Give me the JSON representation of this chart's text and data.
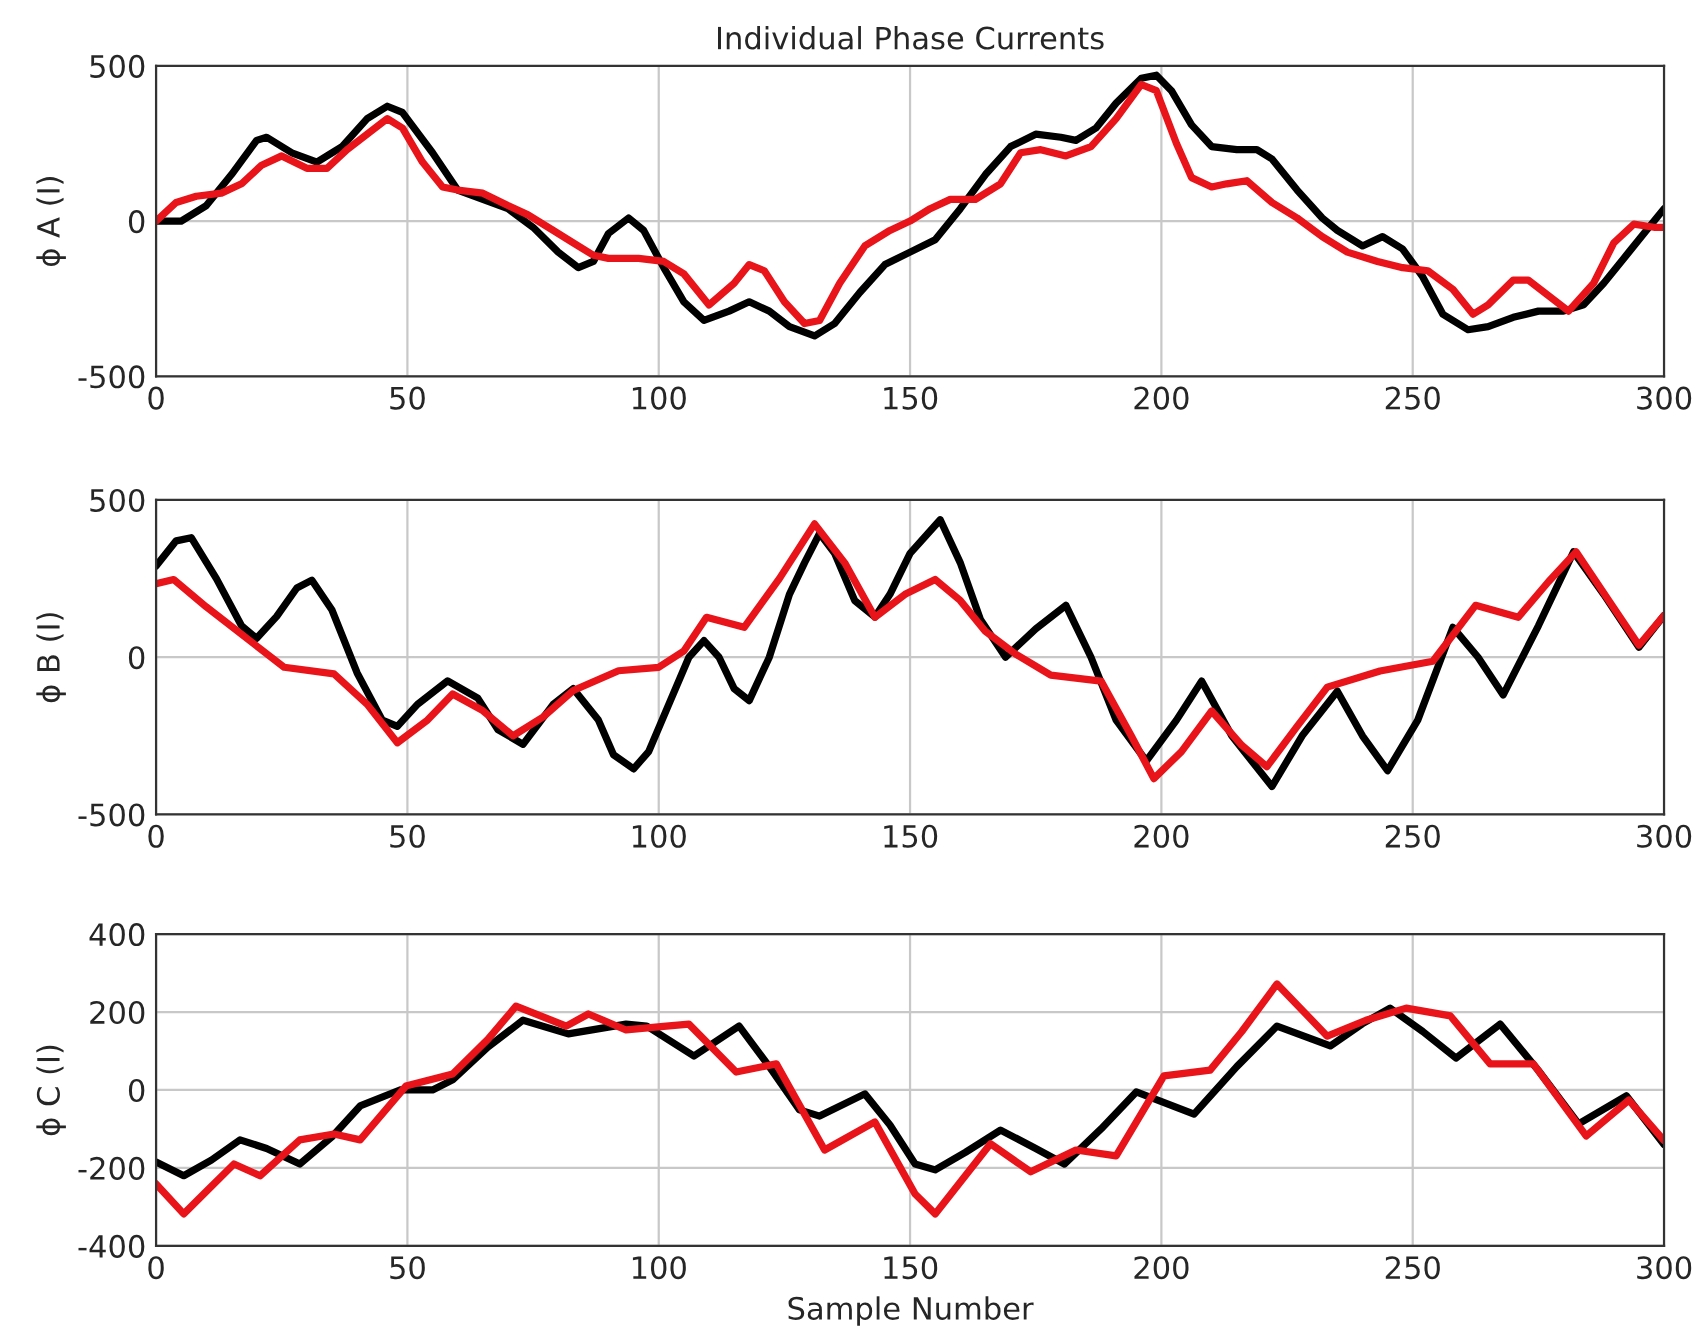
{
  "chart_data": [
    {
      "type": "line",
      "title": "Individual Phase Currents",
      "ylabel": "ϕ A (I)",
      "xlim": [
        0,
        300
      ],
      "xticks": [
        0,
        50,
        100,
        150,
        200,
        250,
        300
      ],
      "ylim": [
        -500,
        500
      ],
      "yticks": [
        -500,
        0,
        500
      ],
      "grid": true,
      "series": [
        {
          "color": "#000000",
          "x": [
            0,
            5,
            10,
            15,
            20,
            22,
            27,
            32,
            37,
            42,
            46,
            49,
            55,
            60,
            65,
            70,
            75,
            80,
            84,
            87,
            90,
            94,
            97,
            101,
            105,
            109,
            114,
            118,
            122,
            126,
            131,
            135,
            140,
            145,
            150,
            155,
            160,
            165,
            170,
            175,
            180,
            183,
            187,
            191,
            196,
            199,
            202,
            206,
            210,
            215,
            219,
            222,
            227,
            232,
            235,
            240,
            244,
            248,
            252,
            256,
            261,
            265,
            270,
            275,
            280,
            284,
            288,
            293,
            297,
            300
          ],
          "values": [
            0,
            0,
            50,
            150,
            260,
            270,
            220,
            190,
            240,
            330,
            370,
            350,
            220,
            100,
            70,
            40,
            -20,
            -100,
            -150,
            -130,
            -40,
            10,
            -30,
            -150,
            -260,
            -320,
            -290,
            -260,
            -290,
            -340,
            -370,
            -330,
            -230,
            -140,
            -100,
            -60,
            40,
            150,
            240,
            280,
            270,
            260,
            300,
            380,
            460,
            470,
            420,
            310,
            240,
            230,
            230,
            200,
            100,
            10,
            -30,
            -80,
            -50,
            -90,
            -180,
            -300,
            -350,
            -340,
            -310,
            -290,
            -290,
            -270,
            -200,
            -100,
            -20,
            40
          ]
        },
        {
          "color": "#e8141a",
          "x": [
            0,
            4,
            8,
            13,
            17,
            21,
            25,
            30,
            34,
            38,
            42,
            46,
            49,
            53,
            57,
            60,
            65,
            70,
            74,
            79,
            83,
            87,
            90,
            96,
            101,
            105,
            110,
            115,
            118,
            121,
            125,
            129,
            132,
            136,
            141,
            146,
            150,
            154,
            158,
            163,
            168,
            172,
            176,
            181,
            186,
            191,
            196,
            199,
            203,
            206,
            210,
            213,
            217,
            222,
            227,
            232,
            237,
            243,
            248,
            253,
            258,
            262,
            265,
            270,
            273,
            277,
            281,
            286,
            290,
            294,
            298,
            300
          ],
          "values": [
            0,
            60,
            80,
            90,
            120,
            180,
            210,
            170,
            170,
            230,
            280,
            330,
            300,
            190,
            110,
            100,
            90,
            50,
            20,
            -30,
            -70,
            -110,
            -120,
            -120,
            -130,
            -170,
            -270,
            -200,
            -140,
            -160,
            -260,
            -330,
            -320,
            -200,
            -80,
            -30,
            0,
            40,
            70,
            70,
            120,
            220,
            230,
            210,
            240,
            330,
            440,
            420,
            250,
            140,
            110,
            120,
            130,
            60,
            10,
            -50,
            -100,
            -130,
            -150,
            -160,
            -220,
            -300,
            -270,
            -190,
            -190,
            -240,
            -290,
            -200,
            -70,
            -10,
            -20,
            -20
          ]
        }
      ]
    },
    {
      "type": "line",
      "ylabel": "ϕ B (I)",
      "xlim": [
        0,
        300
      ],
      "xticks": [
        0,
        50,
        100,
        150,
        200,
        250,
        300
      ],
      "ylim": [
        -500,
        500
      ],
      "yticks": [
        -500,
        0,
        500
      ],
      "grid": true,
      "series": [
        {
          "color": "#000000",
          "x": [
            0,
            4,
            7,
            12,
            17,
            20,
            24,
            28,
            31,
            35,
            40,
            45,
            48,
            52,
            58,
            64,
            68,
            73,
            79,
            83,
            88,
            91,
            95,
            98,
            102,
            106,
            109,
            112,
            115,
            118,
            122,
            126,
            129,
            132,
            135,
            139,
            143,
            146,
            150,
            156,
            160,
            164,
            169,
            175,
            181,
            186,
            191,
            197,
            203,
            208,
            214,
            222,
            228,
            235,
            240,
            245,
            251,
            258,
            263,
            268,
            275,
            282,
            288,
            295,
            300
          ],
          "values": [
            290,
            370,
            380,
            250,
            100,
            60,
            130,
            220,
            245,
            150,
            -50,
            -200,
            -220,
            -150,
            -75,
            -130,
            -230,
            -277,
            -150,
            -100,
            -200,
            -310,
            -355,
            -300,
            -150,
            0,
            53,
            0,
            -100,
            -138,
            0,
            200,
            300,
            394,
            330,
            180,
            128,
            200,
            330,
            437,
            300,
            120,
            0,
            90,
            165,
            0,
            -200,
            -330,
            -200,
            -76,
            -250,
            -411,
            -250,
            -108,
            -250,
            -361,
            -200,
            95,
            0,
            -120,
            100,
            335,
            200,
            32,
            133
          ]
        },
        {
          "color": "#e8141a",
          "x": [
            0,
            3.5,
            10,
            19.5,
            25.5,
            35.4,
            42,
            48,
            54,
            59,
            65,
            71,
            77,
            83,
            92,
            100,
            105,
            109.5,
            117,
            124,
            131,
            137,
            143,
            149,
            155,
            160,
            165,
            171,
            178,
            188,
            194,
            198.5,
            204,
            210,
            216,
            221,
            227,
            233,
            243.5,
            254,
            262.5,
            271,
            277,
            282.5,
            289,
            295,
            300
          ],
          "values": [
            234,
            247,
            160,
            42,
            -32,
            -53,
            -150,
            -272,
            -200,
            -117,
            -170,
            -250,
            -190,
            -106,
            -43,
            -32,
            20,
            127,
            95,
            250,
            424,
            300,
            127,
            200,
            247,
            180,
            82,
            10,
            -57,
            -76,
            -250,
            -386,
            -300,
            -171,
            -280,
            -348,
            -220,
            -95,
            -44,
            -13,
            165,
            127,
            240,
            335,
            180,
            38,
            133
          ]
        }
      ]
    },
    {
      "type": "line",
      "xlabel": "Sample Number",
      "ylabel": "ϕ C (I)",
      "xlim": [
        0,
        300
      ],
      "xticks": [
        0,
        50,
        100,
        150,
        200,
        250,
        300
      ],
      "ylim": [
        -400,
        400
      ],
      "yticks": [
        -400,
        -200,
        0,
        200,
        400
      ],
      "grid": true,
      "series": [
        {
          "color": "#000000",
          "x": [
            0,
            5.5,
            11,
            16.7,
            22,
            28.6,
            35,
            40.6,
            48.5,
            55,
            59,
            66,
            73,
            82,
            93.5,
            97.6,
            107,
            116,
            122,
            128,
            132,
            141,
            146,
            151,
            155,
            161,
            168,
            175,
            180.7,
            188,
            195,
            206.5,
            215,
            223,
            233.6,
            240,
            245.5,
            252,
            258.6,
            267.4,
            275,
            283,
            292.5,
            300
          ],
          "values": [
            -185,
            -220,
            -180,
            -128,
            -150,
            -190,
            -120,
            -41,
            0,
            0,
            26,
            110,
            179,
            144,
            169,
            164,
            87,
            164,
            60,
            -51,
            -67,
            -10,
            -90,
            -190,
            -205,
            -160,
            -103,
            -150,
            -190,
            -100,
            -5,
            -62,
            60,
            164,
            113,
            170,
            210,
            150,
            82,
            169,
            50,
            -87,
            -15,
            -140
          ]
        },
        {
          "color": "#e8141a",
          "x": [
            0,
            5.5,
            10,
            15.5,
            20.7,
            28.6,
            35.4,
            40.6,
            49.7,
            59,
            66,
            71.6,
            81.6,
            86,
            93.5,
            101.5,
            106,
            115.4,
            123.4,
            133,
            143,
            151,
            155,
            166,
            174,
            183,
            191,
            200.5,
            209.7,
            216,
            223,
            233,
            240.7,
            248.7,
            257.5,
            265.4,
            274,
            284.5,
            293,
            300
          ],
          "values": [
            -241,
            -318,
            -260,
            -190,
            -220,
            -128,
            -113,
            -128,
            10,
            41,
            130,
            215,
            164,
            195,
            154,
            164,
            169,
            46,
            67,
            -154,
            -82,
            -267,
            -318,
            -138,
            -210,
            -154,
            -169,
            36,
            51,
            150,
            272,
            138,
            179,
            210,
            190,
            67,
            67,
            -118,
            -26,
            -130
          ]
        }
      ]
    }
  ]
}
